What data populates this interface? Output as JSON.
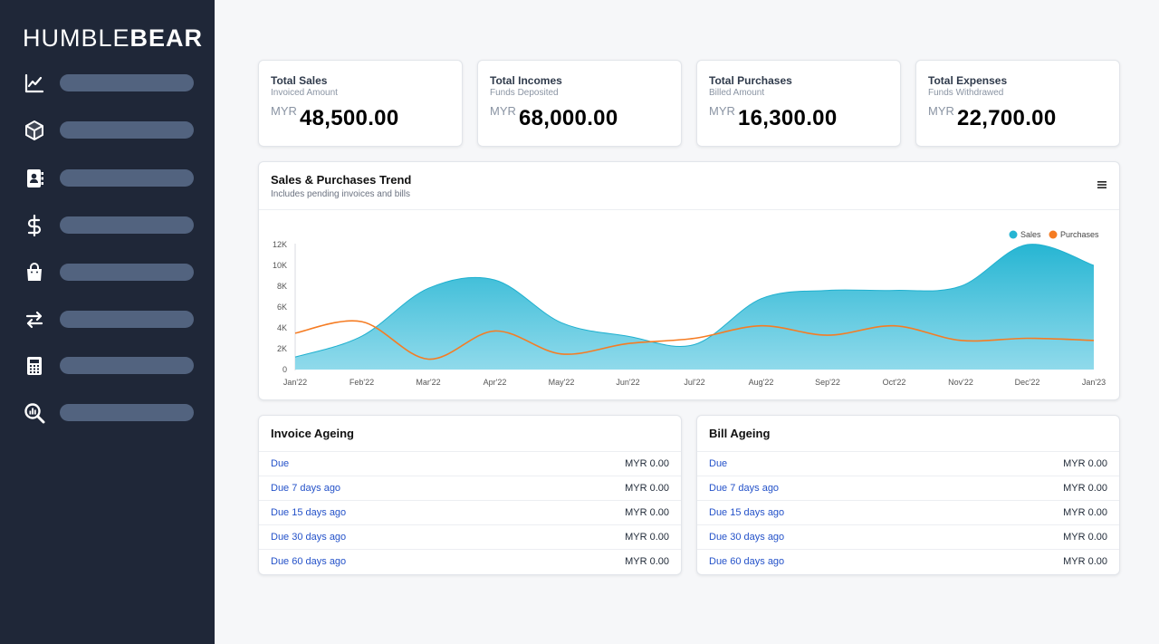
{
  "brand": {
    "thin": "HUMBLE",
    "bold": "BEAR"
  },
  "sidebar": {
    "items": [
      {
        "icon": "chart-line-icon"
      },
      {
        "icon": "box-icon"
      },
      {
        "icon": "contacts-icon"
      },
      {
        "icon": "dollar-icon"
      },
      {
        "icon": "shopping-bag-icon"
      },
      {
        "icon": "transfer-arrows-icon"
      },
      {
        "icon": "calculator-icon"
      },
      {
        "icon": "search-report-icon"
      }
    ]
  },
  "stats": [
    {
      "title": "Total Sales",
      "subtitle": "Invoiced Amount",
      "currency": "MYR",
      "value": "48,500.00"
    },
    {
      "title": "Total Incomes",
      "subtitle": "Funds Deposited",
      "currency": "MYR",
      "value": "68,000.00"
    },
    {
      "title": "Total Purchases",
      "subtitle": "Billed Amount",
      "currency": "MYR",
      "value": "16,300.00"
    },
    {
      "title": "Total Expenses",
      "subtitle": "Funds Withdrawed",
      "currency": "MYR",
      "value": "22,700.00"
    }
  ],
  "trend": {
    "title": "Sales & Purchases Trend",
    "subtitle": "Includes pending invoices and bills"
  },
  "chart_data": {
    "type": "area",
    "categories": [
      "Jan'22",
      "Feb'22",
      "Mar'22",
      "Apr'22",
      "May'22",
      "Jun'22",
      "Jul'22",
      "Aug'22",
      "Sep'22",
      "Oct'22",
      "Nov'22",
      "Dec'22",
      "Jan'23"
    ],
    "series": [
      {
        "name": "Sales",
        "values": [
          1200,
          3200,
          7800,
          8600,
          4500,
          3200,
          2400,
          6800,
          7600,
          7600,
          8000,
          12000,
          10000
        ]
      },
      {
        "name": "Purchases",
        "values": [
          3500,
          4600,
          1000,
          3700,
          1500,
          2500,
          3000,
          4200,
          3300,
          4200,
          2800,
          3000,
          2800
        ]
      }
    ],
    "yticks": [
      "0",
      "2K",
      "4K",
      "6K",
      "8K",
      "10K",
      "12K"
    ],
    "ylim": [
      0,
      12000
    ],
    "legend_position": "top-right",
    "colors": {
      "Sales": "#26b5d3",
      "Purchases": "#f57c23"
    }
  },
  "invoice_ageing": {
    "title": "Invoice Ageing",
    "rows": [
      {
        "label": "Due",
        "amount": "MYR 0.00"
      },
      {
        "label": "Due 7 days ago",
        "amount": "MYR 0.00"
      },
      {
        "label": "Due 15 days ago",
        "amount": "MYR 0.00"
      },
      {
        "label": "Due 30 days ago",
        "amount": "MYR 0.00"
      },
      {
        "label": "Due 60 days ago",
        "amount": "MYR 0.00"
      }
    ]
  },
  "bill_ageing": {
    "title": "Bill Ageing",
    "rows": [
      {
        "label": "Due",
        "amount": "MYR 0.00"
      },
      {
        "label": "Due 7 days ago",
        "amount": "MYR 0.00"
      },
      {
        "label": "Due 15 days ago",
        "amount": "MYR 0.00"
      },
      {
        "label": "Due 30 days ago",
        "amount": "MYR 0.00"
      },
      {
        "label": "Due 60 days ago",
        "amount": "MYR 0.00"
      }
    ]
  },
  "colors": {
    "sidebar": "#1f2738",
    "link": "#2452c9",
    "accent": "#26b5d3",
    "orange": "#f57c23"
  }
}
